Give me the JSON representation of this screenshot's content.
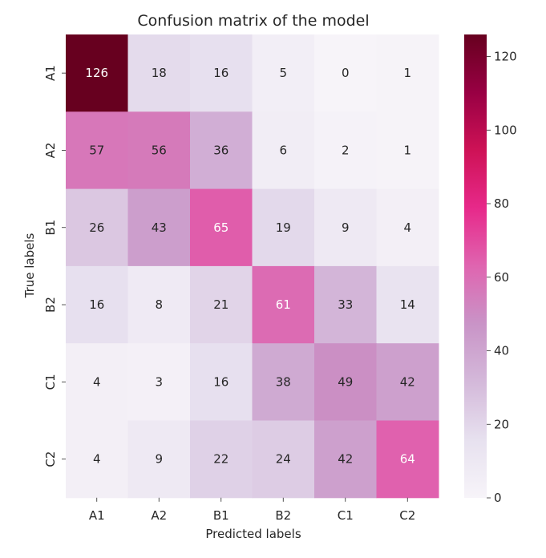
{
  "chart_data": {
    "type": "heatmap",
    "title": "Confusion matrix of the model",
    "xlabel": "Predicted labels",
    "ylabel": "True labels",
    "x_categories": [
      "A1",
      "A2",
      "B1",
      "B2",
      "C1",
      "C2"
    ],
    "y_categories": [
      "A1",
      "A2",
      "B1",
      "B2",
      "C1",
      "C2"
    ],
    "values": [
      [
        126,
        18,
        16,
        5,
        0,
        1
      ],
      [
        57,
        56,
        36,
        6,
        2,
        1
      ],
      [
        26,
        43,
        65,
        19,
        9,
        4
      ],
      [
        16,
        8,
        21,
        61,
        33,
        14
      ],
      [
        4,
        3,
        16,
        38,
        49,
        42
      ],
      [
        4,
        9,
        22,
        24,
        42,
        64
      ]
    ],
    "colorbar": {
      "range": [
        0,
        126
      ],
      "ticks": [
        0,
        20,
        40,
        60,
        80,
        100,
        120
      ],
      "colormap": "PuRd",
      "colors": [
        "#f7f4f9",
        "#e7e1ef",
        "#d4b9da",
        "#c994c7",
        "#df65b0",
        "#e7298a",
        "#ce1256",
        "#980043",
        "#67001f"
      ]
    },
    "grid": false
  }
}
